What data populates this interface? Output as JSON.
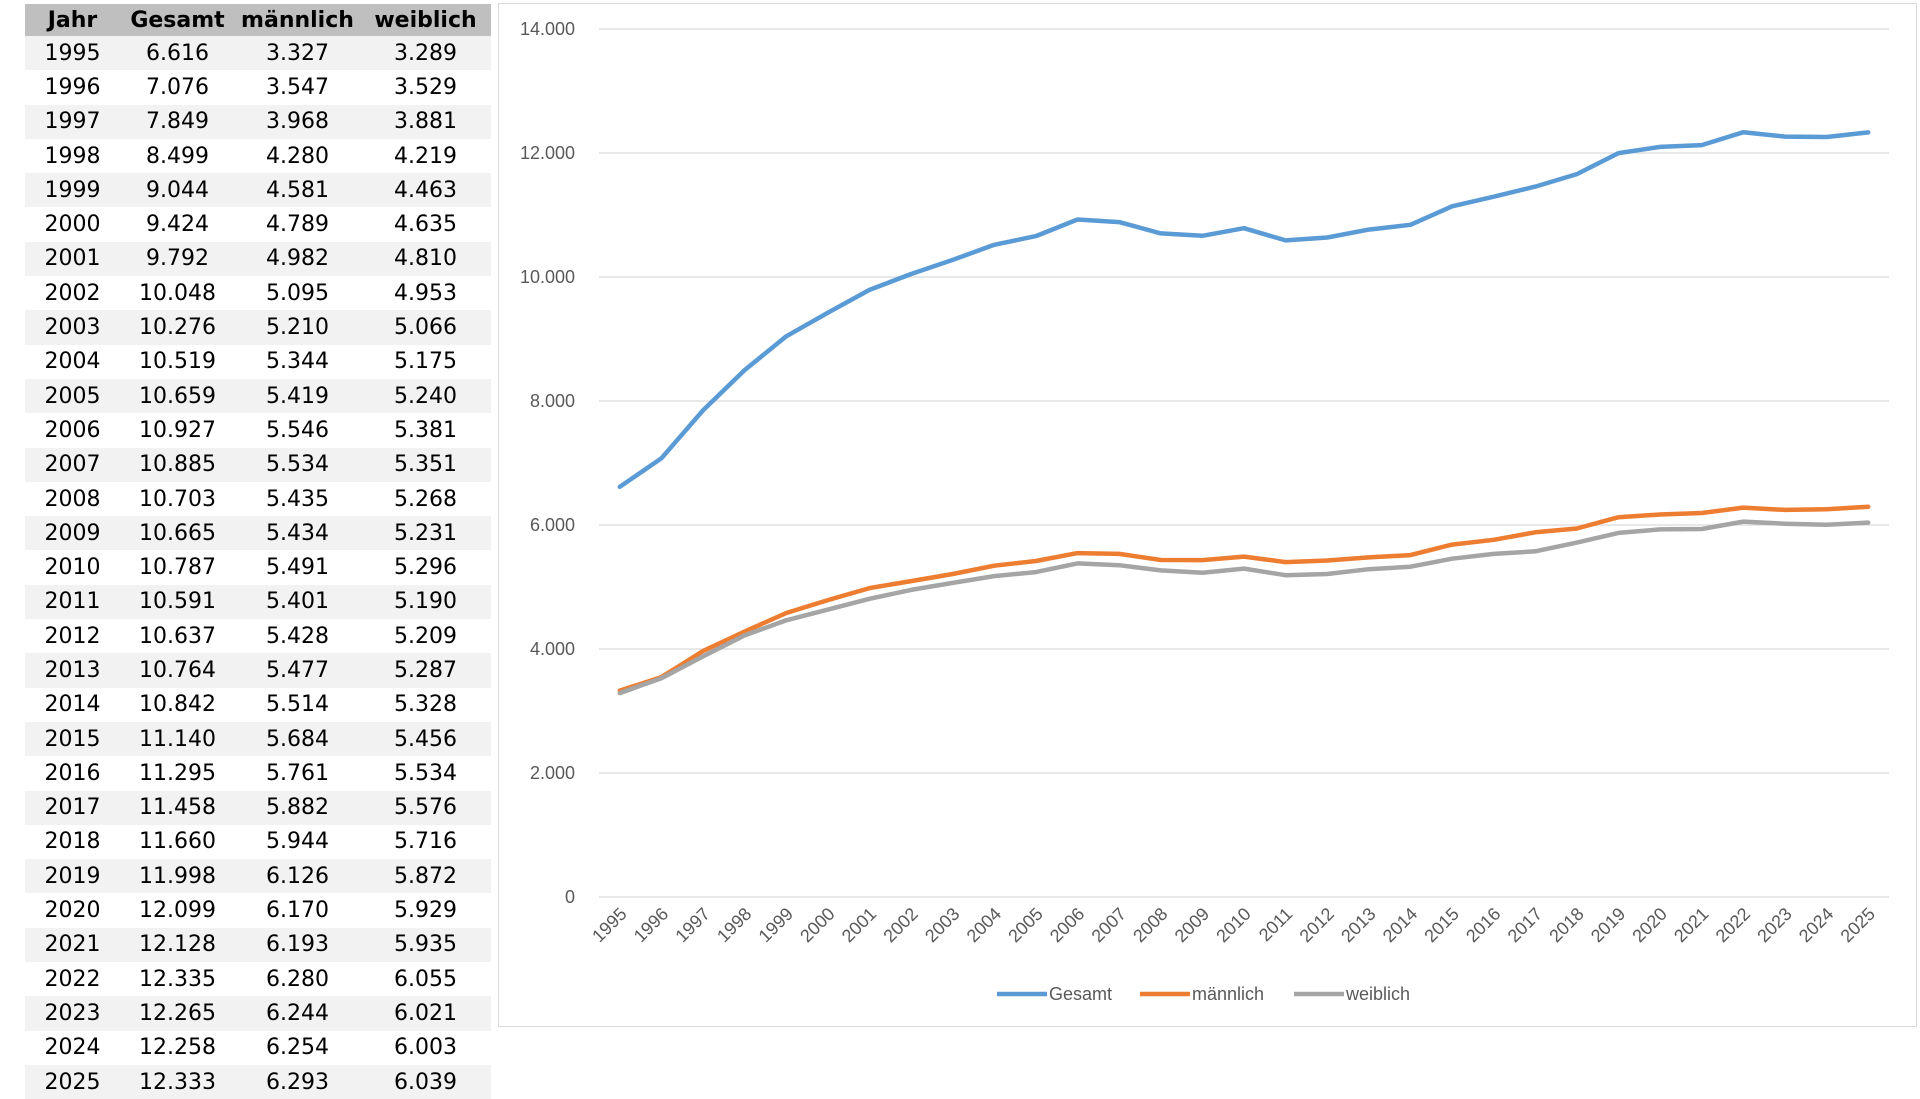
{
  "table": {
    "headers": [
      "Jahr",
      "Gesamt",
      "männlich",
      "weiblich"
    ],
    "rows": [
      [
        "1995",
        "6.616",
        "3.327",
        "3.289"
      ],
      [
        "1996",
        "7.076",
        "3.547",
        "3.529"
      ],
      [
        "1997",
        "7.849",
        "3.968",
        "3.881"
      ],
      [
        "1998",
        "8.499",
        "4.280",
        "4.219"
      ],
      [
        "1999",
        "9.044",
        "4.581",
        "4.463"
      ],
      [
        "2000",
        "9.424",
        "4.789",
        "4.635"
      ],
      [
        "2001",
        "9.792",
        "4.982",
        "4.810"
      ],
      [
        "2002",
        "10.048",
        "5.095",
        "4.953"
      ],
      [
        "2003",
        "10.276",
        "5.210",
        "5.066"
      ],
      [
        "2004",
        "10.519",
        "5.344",
        "5.175"
      ],
      [
        "2005",
        "10.659",
        "5.419",
        "5.240"
      ],
      [
        "2006",
        "10.927",
        "5.546",
        "5.381"
      ],
      [
        "2007",
        "10.885",
        "5.534",
        "5.351"
      ],
      [
        "2008",
        "10.703",
        "5.435",
        "5.268"
      ],
      [
        "2009",
        "10.665",
        "5.434",
        "5.231"
      ],
      [
        "2010",
        "10.787",
        "5.491",
        "5.296"
      ],
      [
        "2011",
        "10.591",
        "5.401",
        "5.190"
      ],
      [
        "2012",
        "10.637",
        "5.428",
        "5.209"
      ],
      [
        "2013",
        "10.764",
        "5.477",
        "5.287"
      ],
      [
        "2014",
        "10.842",
        "5.514",
        "5.328"
      ],
      [
        "2015",
        "11.140",
        "5.684",
        "5.456"
      ],
      [
        "2016",
        "11.295",
        "5.761",
        "5.534"
      ],
      [
        "2017",
        "11.458",
        "5.882",
        "5.576"
      ],
      [
        "2018",
        "11.660",
        "5.944",
        "5.716"
      ],
      [
        "2019",
        "11.998",
        "6.126",
        "5.872"
      ],
      [
        "2020",
        "12.099",
        "6.170",
        "5.929"
      ],
      [
        "2021",
        "12.128",
        "6.193",
        "5.935"
      ],
      [
        "2022",
        "12.335",
        "6.280",
        "6.055"
      ],
      [
        "2023",
        "12.265",
        "6.244",
        "6.021"
      ],
      [
        "2024",
        "12.258",
        "6.254",
        "6.003"
      ],
      [
        "2025",
        "12.333",
        "6.293",
        "6.039"
      ]
    ]
  },
  "chart_data": {
    "type": "line",
    "title": "",
    "xlabel": "",
    "ylabel": "",
    "categories": [
      "1995",
      "1996",
      "1997",
      "1998",
      "1999",
      "2000",
      "2001",
      "2002",
      "2003",
      "2004",
      "2005",
      "2006",
      "2007",
      "2008",
      "2009",
      "2010",
      "2011",
      "2012",
      "2013",
      "2014",
      "2015",
      "2016",
      "2017",
      "2018",
      "2019",
      "2020",
      "2021",
      "2022",
      "2023",
      "2024",
      "2025"
    ],
    "series": [
      {
        "name": "Gesamt",
        "color": "#5b9bd5",
        "values": [
          6616,
          7076,
          7849,
          8499,
          9044,
          9424,
          9792,
          10048,
          10276,
          10519,
          10659,
          10927,
          10885,
          10703,
          10665,
          10787,
          10591,
          10637,
          10764,
          10842,
          11140,
          11295,
          11458,
          11660,
          11998,
          12099,
          12128,
          12335,
          12265,
          12258,
          12333
        ]
      },
      {
        "name": "männlich",
        "color": "#ed7d31",
        "values": [
          3327,
          3547,
          3968,
          4280,
          4581,
          4789,
          4982,
          5095,
          5210,
          5344,
          5419,
          5546,
          5534,
          5435,
          5434,
          5491,
          5401,
          5428,
          5477,
          5514,
          5684,
          5761,
          5882,
          5944,
          6126,
          6170,
          6193,
          6280,
          6244,
          6254,
          6293
        ]
      },
      {
        "name": "weiblich",
        "color": "#a5a5a5",
        "values": [
          3289,
          3529,
          3881,
          4219,
          4463,
          4635,
          4810,
          4953,
          5066,
          5175,
          5240,
          5381,
          5351,
          5268,
          5231,
          5296,
          5190,
          5209,
          5287,
          5328,
          5456,
          5534,
          5576,
          5716,
          5872,
          5929,
          5935,
          6055,
          6021,
          6003,
          6039
        ]
      }
    ],
    "ylim": [
      0,
      14000
    ],
    "yticks": [
      0,
      2000,
      4000,
      6000,
      8000,
      10000,
      12000,
      14000
    ],
    "ytick_labels": [
      "0",
      "2.000",
      "4.000",
      "6.000",
      "8.000",
      "10.000",
      "12.000",
      "14.000"
    ],
    "grid": true,
    "legend_position": "bottom"
  }
}
